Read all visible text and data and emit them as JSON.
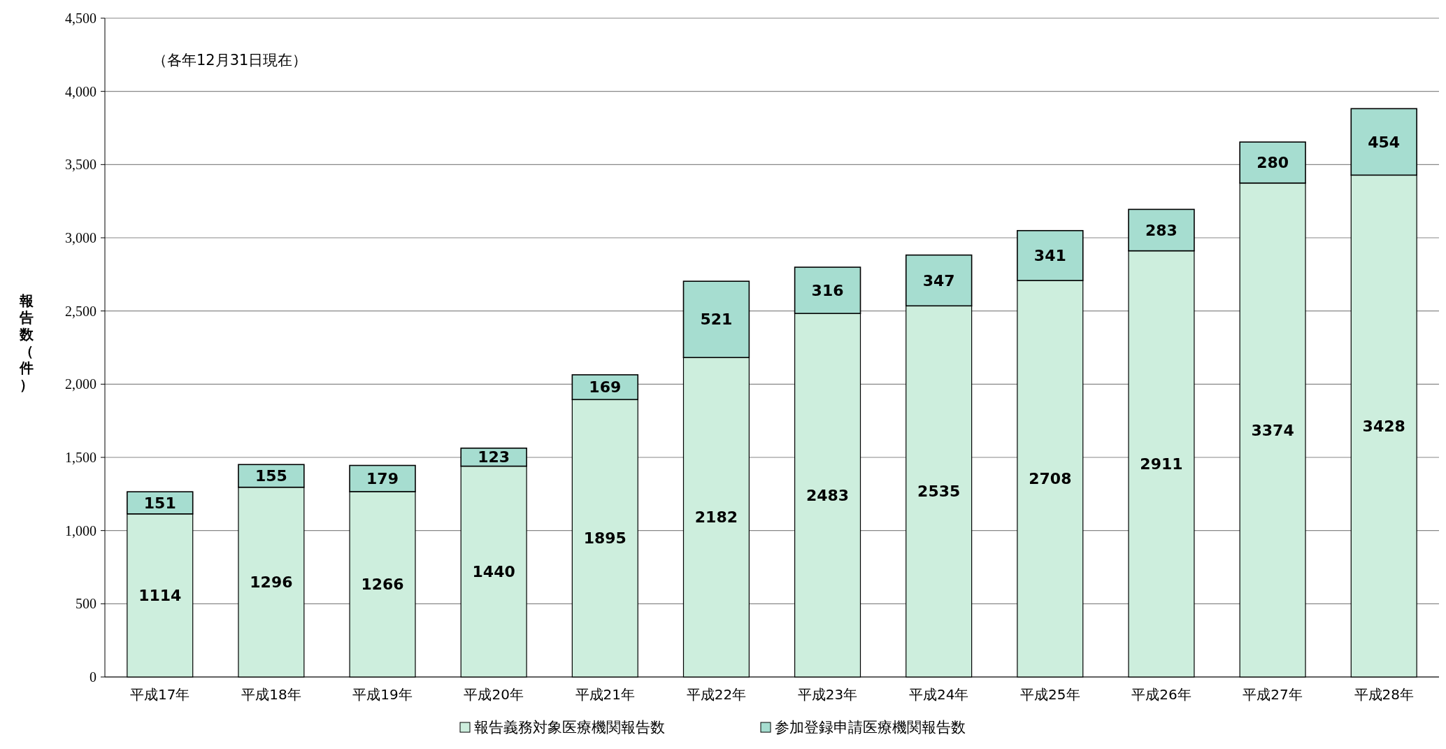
{
  "chart_data": {
    "type": "bar",
    "stacked": true,
    "ylabel": "報告数（件）",
    "annotations": [
      "（各年12月31日現在）"
    ],
    "categories": [
      "平成17年",
      "平成18年",
      "平成19年",
      "平成20年",
      "平成21年",
      "平成22年",
      "平成23年",
      "平成24年",
      "平成25年",
      "平成26年",
      "平成27年",
      "平成28年"
    ],
    "series": [
      {
        "name": "報告義務対象医療機関報告数",
        "color": "#cdeedd",
        "values": [
          1114,
          1296,
          1266,
          1440,
          1895,
          2182,
          2483,
          2535,
          2708,
          2911,
          3374,
          3428
        ]
      },
      {
        "name": "参加登録申請医療機関報告数",
        "color": "#a6ddd0",
        "values": [
          151,
          155,
          179,
          123,
          169,
          521,
          316,
          347,
          341,
          283,
          280,
          454
        ]
      }
    ],
    "ylim": [
      0,
      4500
    ],
    "yticks": [
      {
        "value": 0,
        "label": "0"
      },
      {
        "value": 500,
        "label": "500"
      },
      {
        "value": 1000,
        "label": "1,000"
      },
      {
        "value": 1500,
        "label": "1,500"
      },
      {
        "value": 2000,
        "label": "2,000"
      },
      {
        "value": 2500,
        "label": "2,500"
      },
      {
        "value": 3000,
        "label": "3,000"
      },
      {
        "value": 3500,
        "label": "3,500"
      },
      {
        "value": 4000,
        "label": "4,000"
      },
      {
        "value": 4500,
        "label": "4,500"
      }
    ],
    "grid": "y",
    "legend": "bottom",
    "data_labels": true
  }
}
